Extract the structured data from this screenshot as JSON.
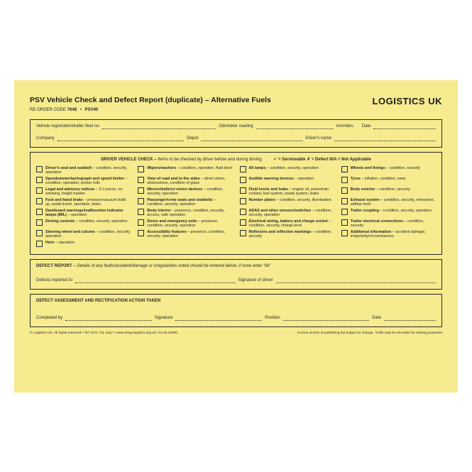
{
  "header": {
    "title": "PSV Vehicle Check and Defect Report (duplicate) – Alternative Fuels",
    "logo": "LOGISTICS UK",
    "reorder_label": "RE-ORDER CODE",
    "reorder_code": "7648",
    "product_code": "PSV40"
  },
  "top_fields": {
    "vehicle_reg": "Vehicle registration/trailer fleet no",
    "odometer": "Odometer reading",
    "odometer_unit": "km/miles",
    "date": "Date",
    "company": "Company",
    "depot": "Depot",
    "driver": "Driver's name"
  },
  "check_header": {
    "lead": "DRIVER VEHICLE CHECK – ",
    "sub": "Items to be checked by driver before and during driving",
    "legend": "✓ = Serviceable      ✗ = Defect      N/A = Not Applicable"
  },
  "columns": [
    [
      {
        "b": "Driver's seat and seatbelt",
        "d": " – condition, security, operation"
      },
      {
        "b": "Speedometer/tachograph and speed limiter",
        "d": " – condition, operation, printer rolls"
      },
      {
        "b": "Legal and advisory notices",
        "d": " – O Licence, no smoking, height marker"
      },
      {
        "b": "Foot and hand brake",
        "d": " – pressure/vacuum build up, pedal travel, operation, leaks"
      },
      {
        "b": "Dashboard warnings/malfunction indicator lamps (MIL)",
        "d": " – operation"
      },
      {
        "b": "Driving controls",
        "d": " – condition, security, operation"
      },
      {
        "b": "Steering wheel and column",
        "d": " – condition, security, operation"
      },
      {
        "b": "Horn",
        "d": " – operation"
      }
    ],
    [
      {
        "b": "Wipers/washers",
        "d": " – condition, operation, fluid level"
      },
      {
        "b": "View of road and to the sides",
        "d": " – direct vision, obstructions, condition of glass"
      },
      {
        "b": "Mirrors/indirect vision devices",
        "d": " – condition, security, operation"
      },
      {
        "b": "Passenger/crew seats and seatbelts",
        "d": " – condition, security, operation"
      },
      {
        "b": "Body interior",
        "d": " – presence, condition, security, access, safe operation"
      },
      {
        "b": "Doors and emergency exits",
        "d": " – presence, condition, security, operation"
      },
      {
        "b": "Accessibility features",
        "d": " – presence, condition, security, operation"
      }
    ],
    [
      {
        "b": "All lamps",
        "d": " – condition, security, operation"
      },
      {
        "b": "Audible warning devices",
        "d": " – operation"
      },
      {
        "b": "Fluid levels and leaks",
        "d": " – engine oil, powertrain coolant, fuel system, waste system, leaks"
      },
      {
        "b": "Number plates",
        "d": " – condition, security, illumination"
      },
      {
        "b": "ADAS and other sensors/switches",
        "d": " – condition, security, operation"
      },
      {
        "b": "Electrical wiring, battery and charge socket",
        "d": " – condition, security, charge level"
      },
      {
        "b": "Reflectors and reflective markings",
        "d": " – condition, security"
      }
    ],
    [
      {
        "b": "Wheels and fixings",
        "d": " – condition, security"
      },
      {
        "b": "Tyres",
        "d": " – inflation, condition, wear"
      },
      {
        "b": "Body exterior",
        "d": " – condition, security"
      },
      {
        "b": "Exhaust system",
        "d": " – condition, security, emissions, adblue level"
      },
      {
        "b": "Trailer coupling",
        "d": " – condition, security, operation"
      },
      {
        "b": "Trailer electrical connections",
        "d": " – condition, security"
      },
      {
        "b": "Additional information",
        "d": " – accident damage, irregularity/circumstances"
      }
    ]
  ],
  "defect_report": {
    "title_b": "DEFECT REPORT – ",
    "title_i": "Details of any faults/accident/damage or irregularities noted should be entered below, if none enter 'Nil'",
    "reported_to": "Defects reported to",
    "signature": "Signature of driver"
  },
  "rectification": {
    "title": "DEFECT ASSESSMENT AND RECTIFICATION ACTION TAKEN",
    "completed_by": "Completed by",
    "signature": "Signature",
    "position": "Position",
    "date": "Date"
  },
  "footer": {
    "left": "© Logistics UK. All rights reserved   •   Tel: 0371 711 1111*   •   www.shop.logistics.org.uk   •   24.02.23/MC",
    "right": "Correct at time of publishing but subject to change.   *Calls may be recorded for training purposes"
  }
}
